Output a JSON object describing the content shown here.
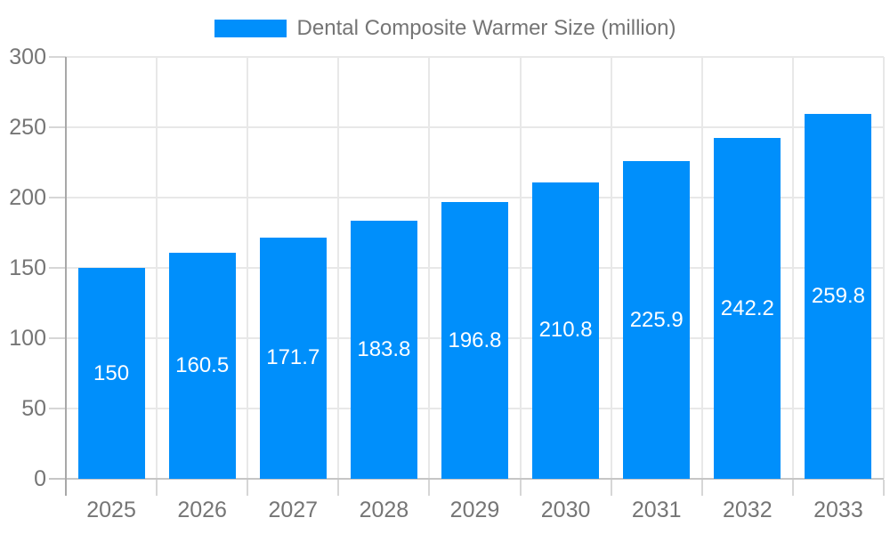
{
  "chart_data": {
    "type": "bar",
    "title": "Dental Composite Warmer Size (million)",
    "categories": [
      "2025",
      "2026",
      "2027",
      "2028",
      "2029",
      "2030",
      "2031",
      "2032",
      "2033"
    ],
    "values": [
      150,
      160.5,
      171.7,
      183.8,
      196.8,
      210.8,
      225.9,
      242.2,
      259.8
    ],
    "ylim": [
      0,
      300
    ],
    "yticks": [
      0,
      50,
      100,
      150,
      200,
      250,
      300
    ],
    "xlabel": "",
    "ylabel": "",
    "grid": true,
    "legend_position": "top",
    "bar_value_labels": true,
    "colors": {
      "bar": "#008FFB",
      "bar_label": "#FFFFFF",
      "axis_text": "#757575",
      "grid_line": "#E8E8E8",
      "y_axis_line": "#A8A8A8",
      "x_axis_line": "#C6C6C6",
      "tick": "#D6D6D6",
      "background": "#FFFFFF"
    }
  }
}
